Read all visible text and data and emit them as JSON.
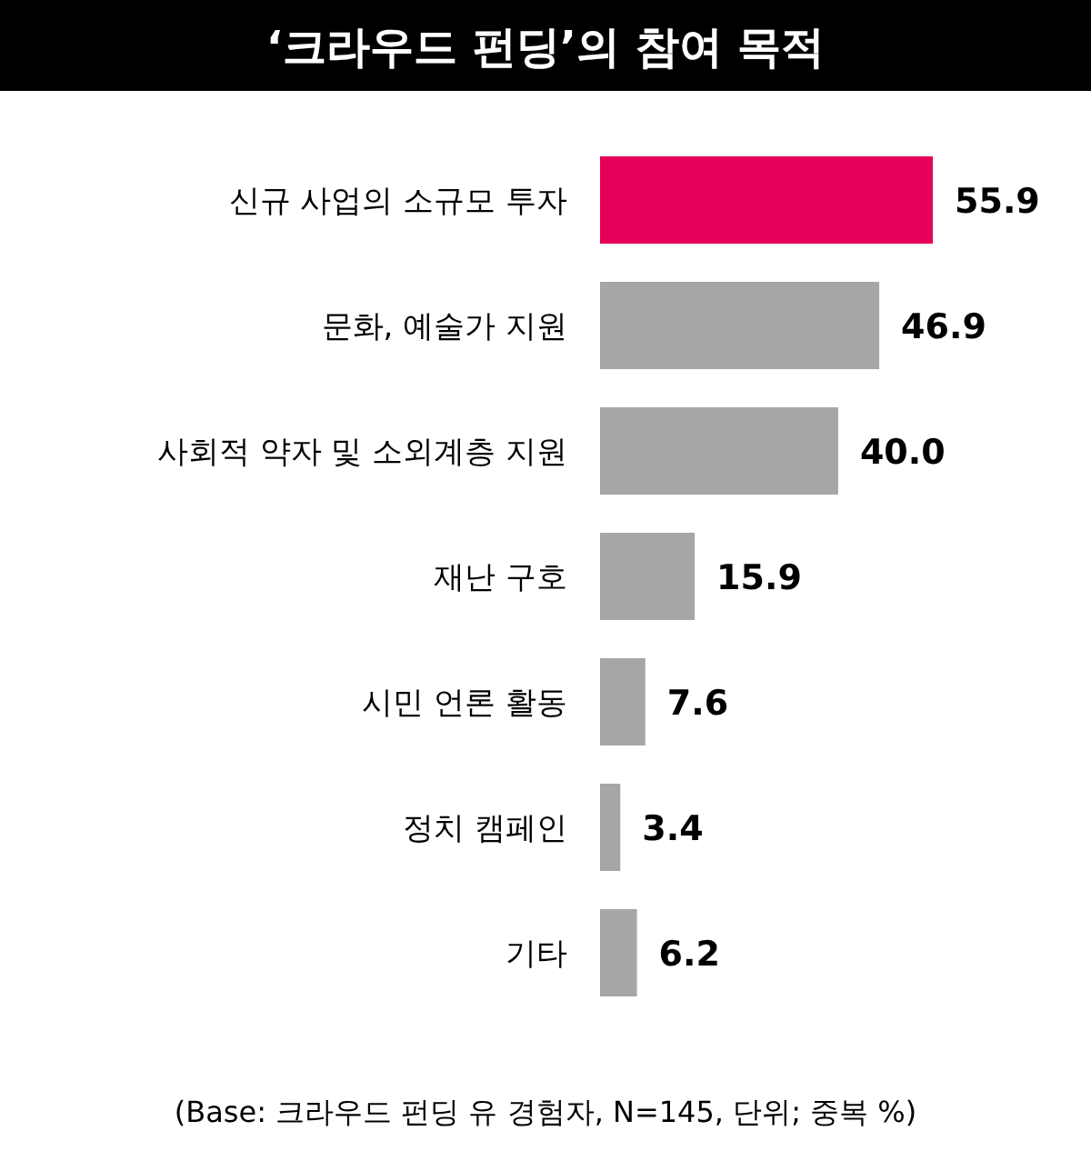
{
  "chart_data": {
    "type": "bar",
    "orientation": "horizontal",
    "title": "‘크라우드 펀딩’의 참여 목적",
    "categories": [
      "신규 사업의 소규모 투자",
      "문화, 예술가 지원",
      "사회적 약자 및 소외계층 지원",
      "재난 구호",
      "시민 언론 활동",
      "정치 캠페인",
      "기타"
    ],
    "values": [
      55.9,
      46.9,
      40.0,
      15.9,
      7.6,
      3.4,
      6.2
    ],
    "colors": [
      "#e5005a",
      "#a6a6a6",
      "#a6a6a6",
      "#a6a6a6",
      "#a6a6a6",
      "#a6a6a6",
      "#a6a6a6"
    ],
    "value_labels": [
      "55.9",
      "46.9",
      "40.0",
      "15.9",
      "7.6",
      "3.4",
      "6.2"
    ],
    "annotations": [
      "(Base: 크라우드 펀딩 유 경험자, N=145, 단위; 중복 %)"
    ]
  }
}
